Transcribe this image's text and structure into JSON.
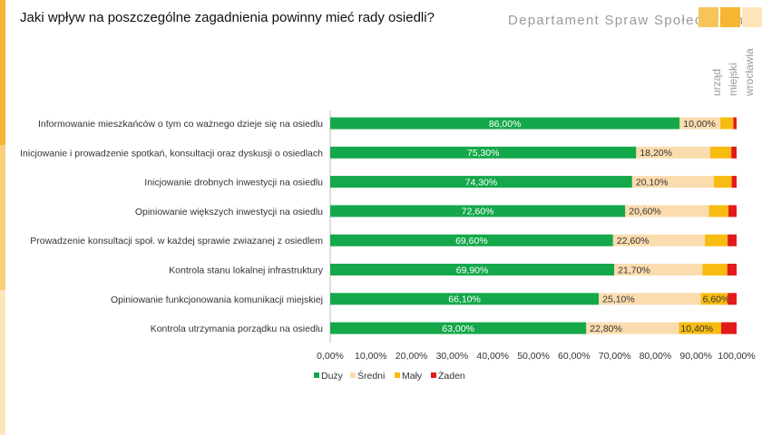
{
  "header": {
    "title": "Jaki wpływ na poszczególne zagadnienia powinny mieć rady osiedli?",
    "department": "Departament Spraw Społecznych",
    "logo_lines": [
      "urząd",
      "miejski",
      "wrocławia"
    ]
  },
  "colors": {
    "accent": "#f5b632",
    "duzy": "#14a84a",
    "sredni": "#fbdcae",
    "maly": "#f7bb12",
    "zaden": "#e21a1a"
  },
  "chart_data": {
    "type": "bar",
    "orientation": "horizontal",
    "stacked": true,
    "title": "Jaki wpływ na poszczególne zagadnienia powinny mieć rady osiedli?",
    "categories": [
      "Informowanie mieszkańców o tym co ważnego dzieje się na osiedlu",
      "Inicjowanie i prowadzenie spotkań, konsultacji oraz dyskusji o osiedlach",
      "Inicjowanie drobnych inwestycji na osiedlu",
      "Opiniowanie większych inwestycji na osiedlu",
      "Prowadzenie konsultacji społ. w każdej sprawie zwiazanej z osiedlem",
      "Kontrola stanu lokalnej infrastruktury",
      "Opiniowanie funkcjonowania komunikacji miejskiej",
      "Kontrola utrzymania porządku na osiedlu"
    ],
    "series": [
      {
        "name": "Duży",
        "color": "#14a84a",
        "values": [
          86.0,
          75.3,
          74.3,
          72.6,
          69.6,
          69.9,
          66.1,
          63.0
        ],
        "labels": [
          "86,00%",
          "75,30%",
          "74,30%",
          "72,60%",
          "69,60%",
          "69,90%",
          "66,10%",
          "63,00%"
        ]
      },
      {
        "name": "Średni",
        "color": "#fbdcae",
        "values": [
          10.0,
          18.2,
          20.1,
          20.6,
          22.6,
          21.7,
          25.1,
          22.8
        ],
        "labels": [
          "10,00%",
          "18,20%",
          "20,10%",
          "20,60%",
          "22,60%",
          "21,70%",
          "25,10%",
          "22,80%"
        ]
      },
      {
        "name": "Mały",
        "color": "#f7bb12",
        "values": [
          3.2,
          5.2,
          4.4,
          4.8,
          5.6,
          6.1,
          6.6,
          10.4
        ],
        "labels": [
          "",
          "",
          "",
          "",
          "",
          "",
          "6,60%",
          "10,40%"
        ]
      },
      {
        "name": "Żaden",
        "color": "#e21a1a",
        "values": [
          0.8,
          1.3,
          1.2,
          2.0,
          2.2,
          2.3,
          2.2,
          3.8
        ],
        "labels": [
          "",
          "",
          "",
          "",
          "",
          "",
          "",
          ""
        ]
      }
    ],
    "xlim": [
      0,
      100
    ],
    "xticks": [
      "0,00%",
      "10,00%",
      "20,00%",
      "30,00%",
      "40,00%",
      "50,00%",
      "60,00%",
      "70,00%",
      "80,00%",
      "90,00%",
      "100,00%"
    ],
    "legend": [
      "Duży",
      "Średni",
      "Mały",
      "Żaden"
    ],
    "legend_position": "bottom",
    "grid": false
  }
}
